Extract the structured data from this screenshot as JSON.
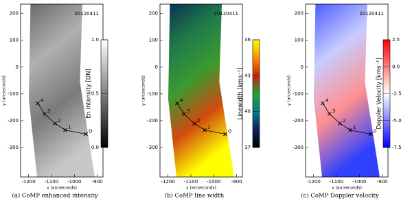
{
  "chart_data": [
    {
      "type": "image",
      "caption": "(a) CoMP enhanced intensity",
      "date": "20120411",
      "xlabel": "x (arcseconds)",
      "ylabel": "y (arcseconds)",
      "xlim": [
        -1235,
        -875
      ],
      "ylim": [
        -410,
        235
      ],
      "xticks": [
        -1200,
        -1100,
        -1000,
        -900
      ],
      "yticks": [
        -300,
        -200,
        -100,
        0,
        100,
        200
      ],
      "image_colors": [
        "#6a6a6a",
        "#b0b0b0",
        "#7a7a7a",
        "#c8c8c8"
      ],
      "points": {
        "labels": [
          "4",
          "3",
          "2",
          "1",
          "O"
        ],
        "x": [
          -1160,
          -1130,
          -1085,
          -1040,
          -950
        ],
        "y": [
          -135,
          -175,
          -210,
          -235,
          -250
        ]
      },
      "colorbar": {
        "label": "En Intensity [DN]",
        "lim": [
          0,
          1
        ],
        "ticks": [
          {
            "value": 0,
            "label": "0.0"
          },
          {
            "value": 0.5,
            "label": "0.5"
          },
          {
            "value": 1,
            "label": "1.0"
          }
        ],
        "colors": [
          "#000000",
          "#ffffff"
        ]
      }
    },
    {
      "type": "image",
      "caption": "(b) CoMP line width",
      "date": "20120411",
      "xlabel": "x (arcseconds)",
      "ylabel": "y (arcseconds)",
      "xlim": [
        -1235,
        -875
      ],
      "ylim": [
        -410,
        235
      ],
      "xticks": [
        -1200,
        -1100,
        -1000,
        -900
      ],
      "yticks": [
        -300,
        -200,
        -100,
        0,
        100,
        200
      ],
      "image_colors": [
        "#0a3050",
        "#1f7a4a",
        "#3a9a30",
        "#d04a10",
        "#ffff00"
      ],
      "points": {
        "labels": [
          "4",
          "3",
          "2",
          "1",
          "O"
        ],
        "x": [
          -1160,
          -1130,
          -1085,
          -1040,
          -950
        ],
        "y": [
          -135,
          -175,
          -210,
          -235,
          -250
        ]
      },
      "colorbar": {
        "label": "Linewidth [kms⁻¹]",
        "lim": [
          37,
          46
        ],
        "ticks": [
          37,
          40,
          43,
          46
        ],
        "colors": [
          "#000000",
          "#102060",
          "#008080",
          "#20a040",
          "#d02000",
          "#ff9000",
          "#ffff00"
        ]
      }
    },
    {
      "type": "image",
      "caption": "(c) CoMP Doppler velocity",
      "date": "20120411",
      "xlabel": "x (arcseconds)",
      "ylabel": "y (arcseconds)",
      "xlim": [
        -1235,
        -875
      ],
      "ylim": [
        -410,
        235
      ],
      "xticks": [
        -1200,
        -1100,
        -1000,
        -900
      ],
      "yticks": [
        -300,
        -200,
        -100,
        0,
        100,
        200
      ],
      "image_colors": [
        "#4a5cff",
        "#c8ccff",
        "#ff9090",
        "#3040ff"
      ],
      "points": {
        "labels": [
          "4",
          "3",
          "2",
          "1",
          "0"
        ],
        "x": [
          -1160,
          -1130,
          -1085,
          -1040,
          -950
        ],
        "y": [
          -135,
          -175,
          -210,
          -235,
          -250
        ]
      },
      "colorbar": {
        "label": "Doppler Velocity [kms⁻¹]",
        "lim": [
          -7.5,
          2.5
        ],
        "ticks": [
          {
            "value": -7.5,
            "label": "-7.5"
          },
          {
            "value": -5,
            "label": "-5.0"
          },
          {
            "value": -2.5,
            "label": "-2.5"
          },
          {
            "value": 0,
            "label": "0.0"
          },
          2.5
        ],
        "colors": [
          "#0000ff",
          "#8080ff",
          "#ffffff",
          "#ff8080",
          "#ff0000"
        ]
      }
    }
  ]
}
